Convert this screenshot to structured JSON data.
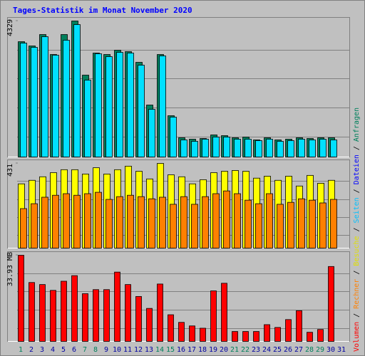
{
  "title": "Tages-Statistik im Monat November 2020",
  "legend": [
    {
      "text": "Volumen",
      "color": "#ff0000"
    },
    {
      "text": "Rechner",
      "color": "#ff8000"
    },
    {
      "text": "Besuche",
      "color": "#e0e000"
    },
    {
      "text": "Seiten",
      "color": "#00c0ff"
    },
    {
      "text": "Dateien",
      "color": "#0000ff"
    },
    {
      "text": "Anfragen",
      "color": "#00805c"
    }
  ],
  "separator": "/",
  "categories": [
    "1",
    "2",
    "3",
    "4",
    "5",
    "6",
    "7",
    "8",
    "9",
    "10",
    "11",
    "12",
    "13",
    "14",
    "15",
    "16",
    "17",
    "18",
    "19",
    "20",
    "21",
    "22",
    "23",
    "24",
    "25",
    "26",
    "27",
    "28",
    "29",
    "30",
    "31"
  ],
  "category_colors": [
    "#00805c",
    "#0000a0",
    "#0000a0",
    "#0000a0",
    "#0000a0",
    "#0000a0",
    "#00805c",
    "#00805c",
    "#0000a0",
    "#0000a0",
    "#0000a0",
    "#0000a0",
    "#0000a0",
    "#00805c",
    "#00805c",
    "#0000a0",
    "#0000a0",
    "#0000a0",
    "#0000a0",
    "#0000a0",
    "#00805c",
    "#00805c",
    "#0000a0",
    "#0000a0",
    "#0000a0",
    "#0000a0",
    "#0000a0",
    "#00805c",
    "#00805c",
    "#0000a0",
    "#0000a0"
  ],
  "chart_data": [
    {
      "type": "bar",
      "ylim": [
        0,
        4329
      ],
      "yticks": [
        4329
      ],
      "series": [
        {
          "color": "#00805c",
          "values": [
            3671,
            3535,
            3898,
            3263,
            3898,
            4329,
            2606,
            3308,
            3263,
            3399,
            3354,
            3014,
            1654,
            3263,
            1314,
            612,
            567,
            589,
            703,
            680,
            612,
            635,
            544,
            612,
            544,
            567,
            612,
            589,
            612,
            612,
            null
          ]
        },
        {
          "color": "#00e0ff",
          "values": [
            3626,
            3490,
            3830,
            3241,
            3717,
            4215,
            2447,
            3286,
            3195,
            3331,
            3309,
            2923,
            1518,
            3218,
            1269,
            544,
            499,
            567,
            635,
            635,
            567,
            567,
            521,
            567,
            499,
            521,
            567,
            544,
            567,
            544,
            null
          ]
        }
      ]
    },
    {
      "type": "bar",
      "ylim": [
        0,
        431
      ],
      "yticks": [
        431
      ],
      "series": [
        {
          "color": "#ffff00",
          "values": [
            327,
            345,
            363,
            384,
            399,
            399,
            377,
            409,
            377,
            399,
            417,
            391,
            352,
            431,
            373,
            363,
            327,
            348,
            384,
            391,
            395,
            391,
            356,
            366,
            345,
            366,
            316,
            370,
            330,
            345,
            null
          ]
        },
        {
          "color": "#ff8000",
          "values": [
            201,
            226,
            259,
            269,
            277,
            269,
            277,
            284,
            248,
            262,
            269,
            262,
            251,
            259,
            223,
            262,
            223,
            262,
            277,
            291,
            277,
            244,
            226,
            277,
            223,
            233,
            251,
            244,
            230,
            248,
            null
          ]
        }
      ]
    },
    {
      "type": "bar",
      "ylim": [
        0,
        33.93
      ],
      "yticks": [
        {
          "value": 33.93,
          "label": "33.93 MB"
        }
      ],
      "series": [
        {
          "color": "#ff0000",
          "values": [
            33.93,
            23.2,
            22.4,
            20.1,
            23.7,
            25.9,
            18.8,
            20.4,
            20.4,
            27.3,
            22.4,
            17.7,
            13.0,
            22.6,
            10.5,
            7.5,
            6.1,
            5.2,
            19.9,
            22.9,
            3.9,
            3.9,
            3.9,
            6.6,
            5.5,
            8.6,
            12.1,
            3.6,
            4.7,
            29.5,
            null
          ]
        }
      ]
    }
  ]
}
